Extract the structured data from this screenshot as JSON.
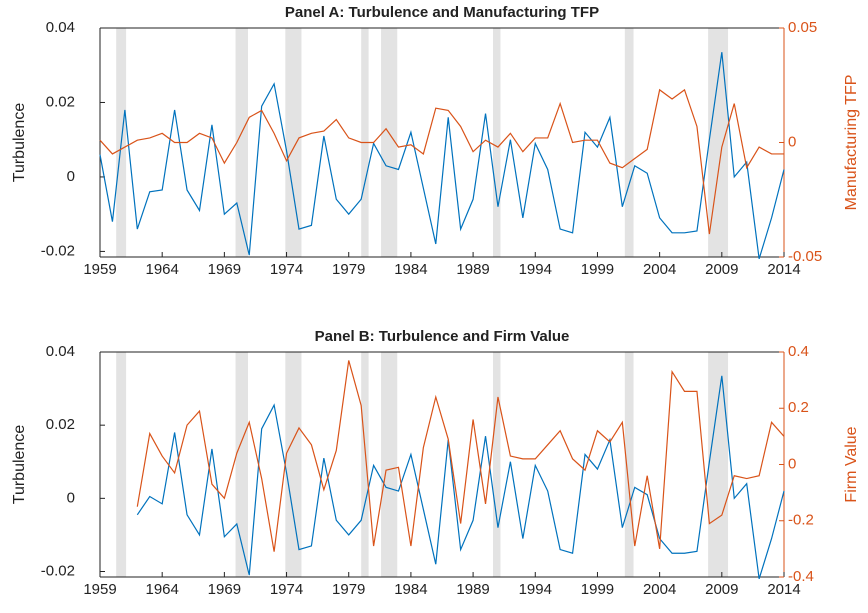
{
  "chart_data": [
    {
      "type": "line",
      "title": "Panel A: Turbulence and Manufacturing TFP",
      "x": [
        1959,
        1960,
        1961,
        1962,
        1963,
        1964,
        1965,
        1966,
        1967,
        1968,
        1969,
        1970,
        1971,
        1972,
        1973,
        1974,
        1975,
        1976,
        1977,
        1978,
        1979,
        1980,
        1981,
        1982,
        1983,
        1984,
        1985,
        1986,
        1987,
        1988,
        1989,
        1990,
        1991,
        1992,
        1993,
        1994,
        1995,
        1996,
        1997,
        1998,
        1999,
        2000,
        2001,
        2002,
        2003,
        2004,
        2005,
        2006,
        2007,
        2008,
        2009,
        2010,
        2011,
        2012,
        2013,
        2014
      ],
      "series": [
        {
          "name": "Turbulence",
          "color": "#0072bd",
          "values": [
            0.006,
            -0.012,
            0.018,
            -0.014,
            -0.004,
            -0.0035,
            0.018,
            -0.0035,
            -0.009,
            0.014,
            -0.01,
            -0.007,
            -0.021,
            0.019,
            0.025,
            0.007,
            -0.014,
            -0.013,
            0.011,
            -0.006,
            -0.01,
            -0.006,
            0.009,
            0.003,
            0.002,
            0.012,
            -0.003,
            -0.018,
            0.016,
            -0.014,
            -0.006,
            0.017,
            -0.008,
            0.01,
            -0.011,
            0.009,
            0.002,
            -0.014,
            -0.015,
            0.012,
            0.008,
            0.016,
            -0.008,
            0.003,
            0.001,
            -0.011,
            -0.015,
            -0.015,
            -0.0145,
            0.01,
            0.0335,
            0.0,
            0.004,
            -0.022,
            -0.011,
            0.002
          ]
        },
        {
          "name": "Manufacturing TFP",
          "color": "#d95319",
          "axis": "y2",
          "values": [
            0.001,
            -0.005,
            -0.002,
            0.001,
            0.002,
            0.004,
            0.0,
            0.0,
            0.004,
            0.002,
            -0.009,
            0.0,
            0.011,
            0.014,
            0.004,
            -0.008,
            0.002,
            0.004,
            0.005,
            0.01,
            0.002,
            0.0,
            0.0,
            0.006,
            -0.002,
            -0.001,
            -0.005,
            0.015,
            0.014,
            0.007,
            -0.004,
            0.001,
            -0.002,
            0.004,
            -0.004,
            0.002,
            0.002,
            0.017,
            0.0,
            0.001,
            0.001,
            -0.009,
            -0.011,
            -0.007,
            -0.003,
            0.023,
            0.019,
            0.023,
            0.007,
            -0.04,
            -0.002,
            0.017,
            -0.011,
            -0.002,
            -0.005,
            -0.005
          ]
        }
      ],
      "xlim": [
        1959,
        2014
      ],
      "xticks": [
        1959,
        1964,
        1969,
        1974,
        1979,
        1984,
        1989,
        1994,
        1999,
        2004,
        2009,
        2014
      ],
      "ylim": [
        -0.0215,
        0.04
      ],
      "yticks": [
        -0.02,
        0,
        0.02,
        0.04
      ],
      "y2lim": [
        -0.05,
        0.05
      ],
      "y2ticks": [
        -0.05,
        0,
        0.05
      ],
      "recessions": [
        [
          1960.3,
          1961.1
        ],
        [
          1969.9,
          1970.9
        ],
        [
          1973.9,
          1975.2
        ],
        [
          1980.0,
          1980.6
        ],
        [
          1981.6,
          1982.9
        ],
        [
          1990.6,
          1991.2
        ],
        [
          2001.2,
          2001.9
        ],
        [
          2007.9,
          2009.5
        ]
      ],
      "recession_color": "#e3e3e3"
    },
    {
      "type": "line",
      "title": "Panel B: Turbulence and Firm Value",
      "x": [
        1959,
        1960,
        1961,
        1962,
        1963,
        1964,
        1965,
        1966,
        1967,
        1968,
        1969,
        1970,
        1971,
        1972,
        1973,
        1974,
        1975,
        1976,
        1977,
        1978,
        1979,
        1980,
        1981,
        1982,
        1983,
        1984,
        1985,
        1986,
        1987,
        1988,
        1989,
        1990,
        1991,
        1992,
        1993,
        1994,
        1995,
        1996,
        1997,
        1998,
        1999,
        2000,
        2001,
        2002,
        2003,
        2004,
        2005,
        2006,
        2007,
        2008,
        2009,
        2010,
        2011,
        2012,
        2013,
        2014
      ],
      "series": [
        {
          "name": "Turbulence",
          "color": "#0072bd",
          "values": [
            null,
            null,
            null,
            -0.0045,
            0.0005,
            -0.0015,
            0.018,
            -0.0045,
            -0.01,
            0.0135,
            -0.0105,
            -0.007,
            -0.021,
            0.019,
            0.0255,
            0.007,
            -0.014,
            -0.013,
            0.011,
            -0.006,
            -0.01,
            -0.006,
            0.009,
            0.003,
            0.002,
            0.012,
            -0.003,
            -0.018,
            0.016,
            -0.014,
            -0.006,
            0.017,
            -0.008,
            0.01,
            -0.011,
            0.009,
            0.002,
            -0.014,
            -0.015,
            0.012,
            0.008,
            0.016,
            -0.008,
            0.003,
            0.001,
            -0.011,
            -0.015,
            -0.015,
            -0.0145,
            0.01,
            0.0335,
            0.0,
            0.004,
            -0.022,
            -0.011,
            0.002
          ]
        },
        {
          "name": "Firm Value",
          "color": "#d95319",
          "axis": "y2",
          "values": [
            null,
            null,
            null,
            -0.15,
            0.11,
            0.03,
            -0.03,
            0.14,
            0.19,
            -0.07,
            -0.12,
            0.04,
            0.15,
            -0.05,
            -0.31,
            0.04,
            0.13,
            0.07,
            -0.09,
            0.05,
            0.37,
            0.21,
            -0.29,
            -0.02,
            -0.01,
            -0.29,
            0.06,
            0.24,
            0.09,
            -0.21,
            0.16,
            -0.14,
            0.24,
            0.03,
            0.02,
            0.02,
            0.07,
            0.12,
            0.02,
            -0.02,
            0.12,
            0.08,
            0.15,
            -0.29,
            -0.04,
            -0.3,
            0.33,
            0.26,
            0.26,
            -0.21,
            -0.18,
            -0.04,
            -0.05,
            -0.04,
            0.15,
            0.1
          ]
        }
      ],
      "xlim": [
        1959,
        2014
      ],
      "xticks": [
        1959,
        1964,
        1969,
        1974,
        1979,
        1984,
        1989,
        1994,
        1999,
        2004,
        2009,
        2014
      ],
      "ylim": [
        -0.0215,
        0.04
      ],
      "yticks": [
        -0.02,
        0,
        0.02,
        0.04
      ],
      "y2lim": [
        -0.4,
        0.4
      ],
      "y2ticks": [
        -0.4,
        -0.2,
        0,
        0.2,
        0.4
      ],
      "recessions": [
        [
          1960.3,
          1961.1
        ],
        [
          1969.9,
          1970.9
        ],
        [
          1973.9,
          1975.2
        ],
        [
          1980.0,
          1980.6
        ],
        [
          1981.6,
          1982.9
        ],
        [
          1990.6,
          1991.2
        ],
        [
          2001.2,
          2001.9
        ],
        [
          2007.9,
          2009.5
        ]
      ],
      "recession_color": "#e3e3e3"
    }
  ]
}
